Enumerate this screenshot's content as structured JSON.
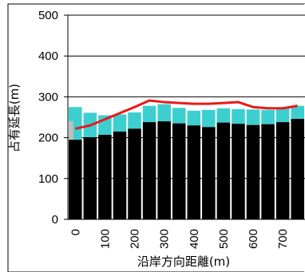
{
  "chart_data": {
    "type": "bar",
    "title": "",
    "xlabel": "沿岸方向距離(m)",
    "ylabel": "占有延長(m)",
    "ylim": [
      0,
      500
    ],
    "yticks": [
      0,
      100,
      200,
      300,
      400,
      500
    ],
    "xticks": [
      0,
      100,
      200,
      300,
      400,
      500,
      600,
      700
    ],
    "x": [
      0,
      50,
      100,
      150,
      200,
      250,
      300,
      350,
      400,
      450,
      500,
      550,
      600,
      650,
      700,
      750
    ],
    "stacked": true,
    "grid": "horizontal",
    "legend": "none",
    "series": [
      {
        "color": "#000000",
        "values": [
          195,
          201,
          207,
          215,
          222,
          238,
          240,
          235,
          230,
          226,
          237,
          234,
          231,
          233,
          238,
          246
        ]
      },
      {
        "color": "#3dcfcf",
        "values": [
          80,
          60,
          48,
          42,
          40,
          40,
          42,
          38,
          36,
          42,
          35,
          36,
          38,
          35,
          36,
          32
        ]
      }
    ],
    "line": {
      "color": "#e81a1a",
      "values": [
        222,
        230,
        245,
        260,
        275,
        291,
        287,
        285,
        283,
        283,
        285,
        287,
        275,
        272,
        272,
        278
      ]
    },
    "highlight_color": "#c0c0c0"
  }
}
